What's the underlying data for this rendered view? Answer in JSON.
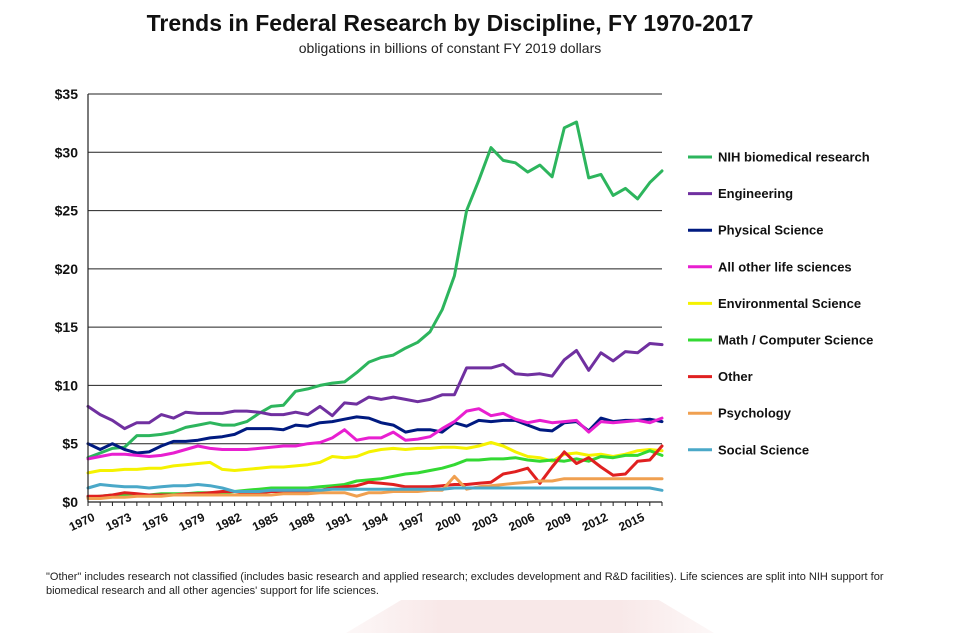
{
  "chart_data": {
    "type": "line",
    "title": "Trends in Federal Research by Discipline, FY 1970-2017",
    "subtitle": "obligations in billions of constant FY 2019 dollars",
    "xlabel": "",
    "ylabel": "",
    "xlim": [
      1970,
      2017
    ],
    "ylim": [
      0,
      35
    ],
    "x_ticks": [
      "1970",
      "1973",
      "1976",
      "1979",
      "1982",
      "1985",
      "1988",
      "1991",
      "1994",
      "1997",
      "2000",
      "2003",
      "2006",
      "2009",
      "2012",
      "2015"
    ],
    "y_ticks": [
      "$0",
      "$5",
      "$10",
      "$15",
      "$20",
      "$25",
      "$30",
      "$35"
    ],
    "grid": "horizontal",
    "legend_position": "right",
    "x": [
      1970,
      1971,
      1972,
      1973,
      1974,
      1975,
      1976,
      1977,
      1978,
      1979,
      1980,
      1981,
      1982,
      1983,
      1984,
      1985,
      1986,
      1987,
      1988,
      1989,
      1990,
      1991,
      1992,
      1993,
      1994,
      1995,
      1996,
      1997,
      1998,
      1999,
      2000,
      2001,
      2002,
      2003,
      2004,
      2005,
      2006,
      2007,
      2008,
      2009,
      2010,
      2011,
      2012,
      2013,
      2014,
      2015,
      2016,
      2017
    ],
    "series": [
      {
        "name": "NIH biomedical research",
        "color": "#2db55d",
        "values": [
          3.8,
          4.2,
          4.6,
          4.7,
          5.7,
          5.7,
          5.8,
          6.0,
          6.4,
          6.6,
          6.8,
          6.6,
          6.6,
          6.9,
          7.6,
          8.2,
          8.3,
          9.5,
          9.7,
          10.0,
          10.2,
          10.3,
          11.1,
          12.0,
          12.4,
          12.6,
          13.2,
          13.7,
          14.6,
          16.5,
          19.4,
          25.0,
          27.6,
          30.4,
          29.3,
          29.1,
          28.3,
          28.9,
          27.9,
          32.1,
          32.6,
          27.8,
          28.1,
          26.3,
          26.9,
          26.0,
          27.4,
          28.4
        ]
      },
      {
        "name": "Engineering",
        "color": "#7030a0",
        "values": [
          8.2,
          7.5,
          7.0,
          6.3,
          6.8,
          6.8,
          7.5,
          7.2,
          7.7,
          7.6,
          7.6,
          7.6,
          7.8,
          7.8,
          7.7,
          7.5,
          7.5,
          7.7,
          7.5,
          8.2,
          7.4,
          8.5,
          8.4,
          9.0,
          8.8,
          9.0,
          8.8,
          8.6,
          8.8,
          9.2,
          9.2,
          11.5,
          11.5,
          11.5,
          11.8,
          11.0,
          10.9,
          11.0,
          10.8,
          12.2,
          13.0,
          11.3,
          12.8,
          12.1,
          12.9,
          12.8,
          13.6,
          13.5
        ]
      },
      {
        "name": "Physical Science",
        "color": "#001a80",
        "values": [
          5.0,
          4.5,
          5.0,
          4.5,
          4.2,
          4.3,
          4.8,
          5.2,
          5.2,
          5.3,
          5.5,
          5.6,
          5.8,
          6.3,
          6.3,
          6.3,
          6.2,
          6.6,
          6.5,
          6.8,
          6.9,
          7.1,
          7.3,
          7.2,
          6.8,
          6.6,
          6.0,
          6.2,
          6.2,
          6.0,
          6.8,
          6.5,
          7.0,
          6.9,
          7.0,
          7.0,
          6.6,
          6.2,
          6.1,
          6.8,
          6.9,
          6.1,
          7.2,
          6.9,
          7.0,
          7.0,
          7.1,
          6.9
        ]
      },
      {
        "name": "All other life sciences",
        "color": "#e81fd0",
        "values": [
          3.7,
          3.9,
          4.1,
          4.1,
          4.0,
          3.9,
          4.0,
          4.2,
          4.5,
          4.8,
          4.6,
          4.5,
          4.5,
          4.5,
          4.6,
          4.7,
          4.8,
          4.8,
          5.0,
          5.1,
          5.5,
          6.2,
          5.3,
          5.5,
          5.5,
          6.0,
          5.3,
          5.4,
          5.6,
          6.3,
          6.9,
          7.8,
          8.0,
          7.4,
          7.6,
          7.1,
          6.8,
          7.0,
          6.8,
          6.9,
          7.0,
          6.0,
          6.9,
          6.8,
          6.9,
          7.0,
          6.8,
          7.2
        ]
      },
      {
        "name": "Environmental Science",
        "color": "#f5f200",
        "values": [
          2.5,
          2.7,
          2.7,
          2.8,
          2.8,
          2.9,
          2.9,
          3.1,
          3.2,
          3.3,
          3.4,
          2.8,
          2.7,
          2.8,
          2.9,
          3.0,
          3.0,
          3.1,
          3.2,
          3.4,
          3.9,
          3.8,
          3.9,
          4.3,
          4.5,
          4.6,
          4.5,
          4.6,
          4.6,
          4.7,
          4.7,
          4.6,
          4.8,
          5.1,
          4.8,
          4.3,
          3.9,
          3.8,
          3.5,
          4.1,
          4.2,
          4.0,
          4.1,
          3.9,
          4.1,
          4.4,
          4.5,
          4.4
        ]
      },
      {
        "name": "Math / Computer Science",
        "color": "#33d933",
        "values": [
          0.4,
          0.5,
          0.6,
          0.6,
          0.6,
          0.6,
          0.7,
          0.7,
          0.7,
          0.8,
          0.8,
          0.8,
          0.9,
          1.0,
          1.1,
          1.2,
          1.2,
          1.2,
          1.2,
          1.3,
          1.4,
          1.5,
          1.8,
          1.9,
          2.0,
          2.2,
          2.4,
          2.5,
          2.7,
          2.9,
          3.2,
          3.6,
          3.6,
          3.7,
          3.7,
          3.8,
          3.6,
          3.5,
          3.6,
          3.5,
          3.7,
          3.5,
          3.9,
          3.8,
          4.0,
          4.0,
          4.4,
          4.0
        ]
      },
      {
        "name": "Other",
        "color": "#e02020",
        "values": [
          0.5,
          0.5,
          0.6,
          0.8,
          0.7,
          0.6,
          0.6,
          0.6,
          0.7,
          0.7,
          0.8,
          0.9,
          0.9,
          0.8,
          0.8,
          0.9,
          0.9,
          0.9,
          0.9,
          1.0,
          1.2,
          1.3,
          1.4,
          1.7,
          1.6,
          1.5,
          1.3,
          1.3,
          1.3,
          1.4,
          1.5,
          1.5,
          1.6,
          1.7,
          2.4,
          2.6,
          2.9,
          1.6,
          3.0,
          4.3,
          3.3,
          3.8,
          3.0,
          2.3,
          2.4,
          3.5,
          3.6,
          4.8
        ]
      },
      {
        "name": "Psychology",
        "color": "#f0a050",
        "values": [
          0.3,
          0.3,
          0.4,
          0.4,
          0.5,
          0.5,
          0.5,
          0.6,
          0.6,
          0.6,
          0.6,
          0.6,
          0.6,
          0.6,
          0.6,
          0.6,
          0.7,
          0.7,
          0.7,
          0.8,
          0.8,
          0.8,
          0.5,
          0.8,
          0.8,
          0.9,
          0.9,
          0.9,
          1.0,
          1.0,
          2.2,
          1.1,
          1.3,
          1.4,
          1.5,
          1.6,
          1.7,
          1.8,
          1.8,
          2.0,
          2.0,
          2.0,
          2.0,
          2.0,
          2.0,
          2.0,
          2.0,
          2.0
        ]
      },
      {
        "name": "Social Science",
        "color": "#4aa8c8",
        "values": [
          1.2,
          1.5,
          1.4,
          1.3,
          1.3,
          1.2,
          1.3,
          1.4,
          1.4,
          1.5,
          1.4,
          1.2,
          0.9,
          0.9,
          0.9,
          1.0,
          1.0,
          1.0,
          1.0,
          1.0,
          1.1,
          1.1,
          1.1,
          1.1,
          1.1,
          1.1,
          1.1,
          1.1,
          1.1,
          1.1,
          1.2,
          1.2,
          1.2,
          1.2,
          1.2,
          1.2,
          1.2,
          1.2,
          1.2,
          1.2,
          1.2,
          1.2,
          1.2,
          1.2,
          1.2,
          1.2,
          1.2,
          1.0
        ]
      }
    ]
  },
  "footnote": "\"Other\" includes research not classified (includes basic research and applied research; excludes development and R&D facilities). Life sciences are split into NIH  support for biomedical research and all other agencies' support for life sciences."
}
